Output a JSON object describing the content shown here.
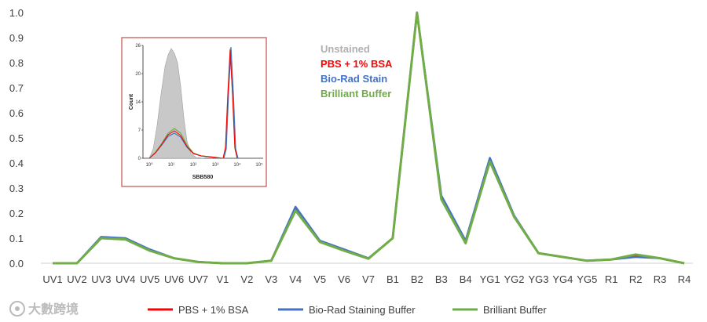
{
  "chart_data": {
    "type": "line",
    "title": "",
    "xlabel": "",
    "ylabel": "",
    "ylim": [
      0,
      1.0
    ],
    "yticks": [
      "0.0",
      "0.1",
      "0.2",
      "0.3",
      "0.4",
      "0.5",
      "0.6",
      "0.7",
      "0.8",
      "0.9",
      "1.0"
    ],
    "grid": false,
    "legend_position": "bottom",
    "categories": [
      "UV1",
      "UV2",
      "UV3",
      "UV4",
      "UV5",
      "UV6",
      "UV7",
      "V1",
      "V2",
      "V3",
      "V4",
      "V5",
      "V6",
      "V7",
      "B1",
      "B2",
      "B3",
      "B4",
      "YG1",
      "YG2",
      "YG3",
      "YG4",
      "YG5",
      "R1",
      "R2",
      "R3",
      "R4"
    ],
    "series": [
      {
        "name": "PBS + 1% BSA",
        "color": "#ff0000",
        "values": [
          0.0,
          0.0,
          0.1,
          0.095,
          0.05,
          0.02,
          0.005,
          0.0,
          0.0,
          0.01,
          0.215,
          0.085,
          0.05,
          0.018,
          0.1,
          1.0,
          0.26,
          0.085,
          0.41,
          0.185,
          0.04,
          0.025,
          0.01,
          0.015,
          0.03,
          0.02,
          0.0
        ]
      },
      {
        "name": "Bio-Rad Staining Buffer",
        "color": "#4472c4",
        "values": [
          0.0,
          0.0,
          0.105,
          0.1,
          0.055,
          0.02,
          0.005,
          0.0,
          0.0,
          0.01,
          0.225,
          0.09,
          0.055,
          0.02,
          0.1,
          1.0,
          0.27,
          0.09,
          0.42,
          0.19,
          0.04,
          0.025,
          0.01,
          0.015,
          0.025,
          0.02,
          0.0
        ]
      },
      {
        "name": "Brilliant Buffer",
        "color": "#70ad47",
        "values": [
          0.0,
          0.0,
          0.1,
          0.095,
          0.05,
          0.02,
          0.005,
          0.0,
          0.0,
          0.01,
          0.21,
          0.085,
          0.05,
          0.018,
          0.1,
          1.0,
          0.255,
          0.08,
          0.405,
          0.185,
          0.04,
          0.025,
          0.01,
          0.015,
          0.035,
          0.02,
          0.0
        ]
      }
    ],
    "inset": {
      "xlabel": "SBB580",
      "ylabel": "Count",
      "yticks": [
        "0",
        "7",
        "14",
        "20",
        "26"
      ],
      "xticks": [
        "10⁰",
        "10¹",
        "10²",
        "10³",
        "10⁴",
        "10⁵"
      ],
      "legend": [
        {
          "label": "Unstained",
          "color": "#b0b0b0"
        },
        {
          "label": "PBS + 1% BSA",
          "color": "#ff0000"
        },
        {
          "label": "Bio-Rad Stain",
          "color": "#4472c4"
        },
        {
          "label": "Brilliant Buffer",
          "color": "#70ad47"
        }
      ]
    }
  },
  "watermark": "大數跨境"
}
